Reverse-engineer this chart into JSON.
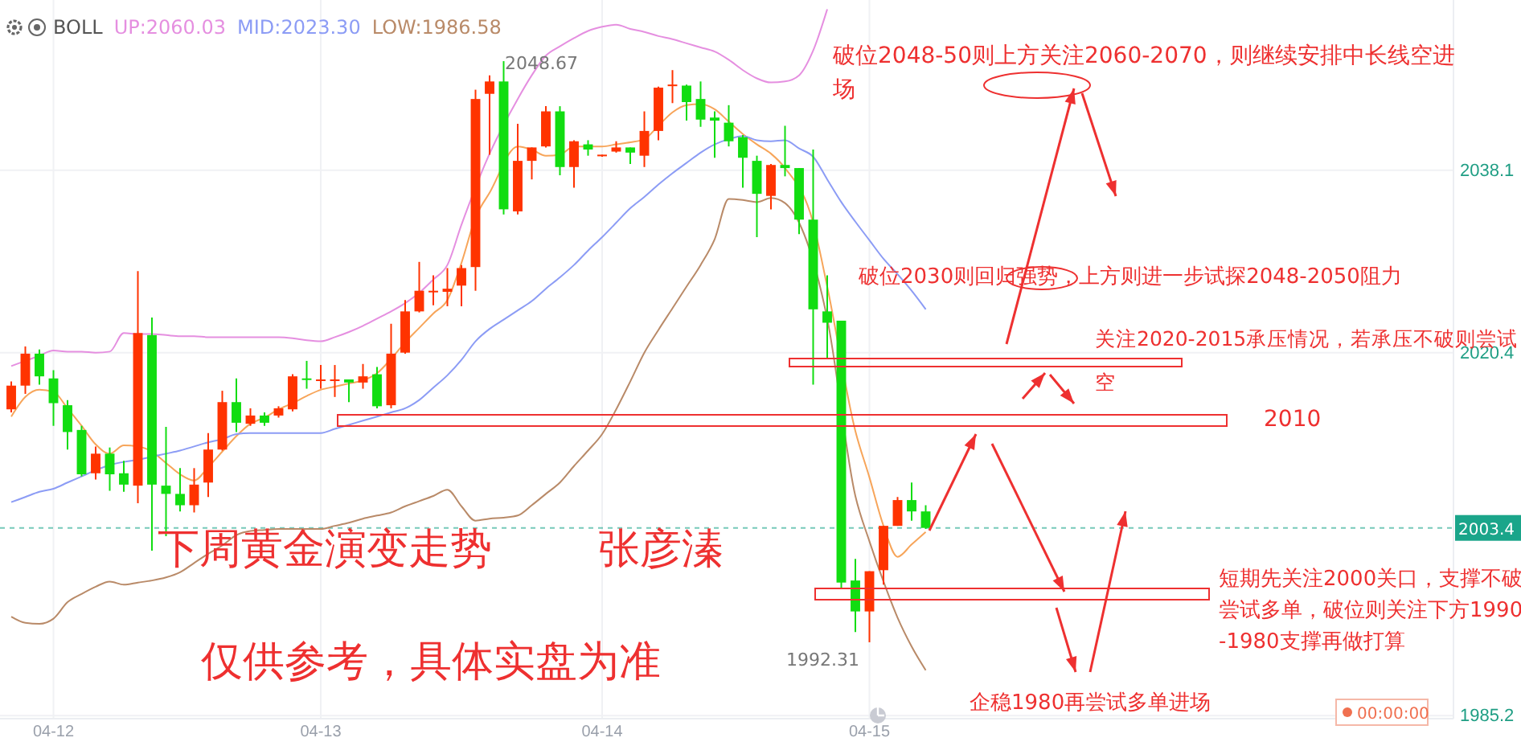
{
  "chart_data": {
    "type": "candlestick",
    "categories": [
      null,
      null,
      null,
      "04-12",
      null,
      null,
      null,
      null,
      null,
      null,
      null,
      null,
      null,
      null,
      null,
      null,
      null,
      null,
      null,
      null,
      null,
      null,
      "04-13",
      null,
      null,
      null,
      null,
      null,
      null,
      null,
      null,
      null,
      null,
      null,
      null,
      null,
      null,
      null,
      null,
      null,
      null,
      null,
      "04-14",
      null,
      null,
      null,
      null,
      null,
      null,
      null,
      null,
      null,
      null,
      null,
      null,
      null,
      null,
      null,
      null,
      null,
      null,
      "04-15",
      null,
      null,
      null,
      null
    ],
    "ohlc": [
      [
        2014.9,
        2017.6,
        2014.6,
        2017.2
      ],
      [
        2017.2,
        2021.0,
        2016.4,
        2020.3
      ],
      [
        2020.3,
        2020.7,
        2017.3,
        2018.1
      ],
      [
        2017.9,
        2018.7,
        2013.3,
        2015.5
      ],
      [
        2015.3,
        2015.8,
        2011.0,
        2012.7
      ],
      [
        2012.9,
        2013.3,
        2008.4,
        2008.6
      ],
      [
        2008.7,
        2011.3,
        2008.1,
        2010.6
      ],
      [
        2010.6,
        2011.2,
        2007.0,
        2008.6
      ],
      [
        2008.7,
        2009.9,
        2006.9,
        2007.6
      ],
      [
        2007.5,
        2028.3,
        2005.8,
        2022.3
      ],
      [
        2022.1,
        2023.8,
        2001.2,
        2007.6
      ],
      [
        2007.5,
        2013.2,
        2002.6,
        2006.7
      ],
      [
        2006.7,
        2009.2,
        2005.0,
        2005.6
      ],
      [
        2005.6,
        2009.2,
        2004.9,
        2007.6
      ],
      [
        2007.8,
        2012.6,
        2006.4,
        2011.0
      ],
      [
        2011.0,
        2016.7,
        2010.9,
        2015.6
      ],
      [
        2015.6,
        2017.9,
        2012.7,
        2013.6
      ],
      [
        2013.5,
        2015.0,
        2013.3,
        2014.3
      ],
      [
        2014.3,
        2014.6,
        2013.3,
        2013.6
      ],
      [
        2014.3,
        2015.2,
        2014.1,
        2015.0
      ],
      [
        2014.9,
        2018.3,
        2014.7,
        2018.1
      ],
      [
        2017.9,
        2019.6,
        2016.9,
        2017.8
      ],
      [
        2017.7,
        2019.2,
        2016.9,
        2017.8
      ],
      [
        2017.7,
        2019.2,
        2016.1,
        2017.8
      ],
      [
        2017.8,
        2017.8,
        2015.6,
        2017.5
      ],
      [
        2017.5,
        2019.3,
        2016.9,
        2018.1
      ],
      [
        2018.3,
        2019.0,
        2015.0,
        2015.2
      ],
      [
        2015.3,
        2023.2,
        2015.0,
        2020.3
      ],
      [
        2020.4,
        2025.5,
        2020.3,
        2024.4
      ],
      [
        2024.4,
        2029.2,
        2024.3,
        2026.4
      ],
      [
        2026.3,
        2027.9,
        2025.0,
        2026.4
      ],
      [
        2026.3,
        2028.6,
        2024.9,
        2026.6
      ],
      [
        2026.9,
        2028.9,
        2024.9,
        2028.6
      ],
      [
        2028.7,
        2045.9,
        2026.4,
        2045.0
      ],
      [
        2045.5,
        2047.3,
        2039.6,
        2046.7
      ],
      [
        2046.7,
        2048.67,
        2033.8,
        2034.3
      ],
      [
        2034.1,
        2042.6,
        2033.8,
        2039.0
      ],
      [
        2039.0,
        2040.3,
        2037.2,
        2040.3
      ],
      [
        2040.4,
        2044.3,
        2040.3,
        2043.8
      ],
      [
        2043.8,
        2044.3,
        2037.6,
        2038.4
      ],
      [
        2038.4,
        2041.0,
        2036.4,
        2040.9
      ],
      [
        2040.6,
        2041.0,
        2039.5,
        2040.1
      ],
      [
        2039.5,
        2039.6,
        2039.4,
        2039.6
      ],
      [
        2039.9,
        2040.9,
        2039.8,
        2040.3
      ],
      [
        2040.3,
        2040.3,
        2038.7,
        2039.8
      ],
      [
        2039.5,
        2043.8,
        2038.4,
        2041.9
      ],
      [
        2041.9,
        2046.2,
        2041.0,
        2046.1
      ],
      [
        2046.3,
        2047.8,
        2044.6,
        2046.4
      ],
      [
        2046.3,
        2046.4,
        2042.9,
        2044.7
      ],
      [
        2045.0,
        2046.7,
        2042.3,
        2043.0
      ],
      [
        2043.2,
        2043.8,
        2039.3,
        2042.9
      ],
      [
        2042.7,
        2044.4,
        2040.4,
        2040.9
      ],
      [
        2041.3,
        2041.5,
        2036.4,
        2039.3
      ],
      [
        2039.0,
        2039.5,
        2031.6,
        2035.8
      ],
      [
        2035.6,
        2038.7,
        2034.3,
        2038.6
      ],
      [
        2038.6,
        2042.4,
        2037.5,
        2038.3
      ],
      [
        2038.3,
        2038.3,
        2031.9,
        2033.3
      ],
      [
        2033.3,
        2040.1,
        2017.3,
        2024.6
      ],
      [
        2024.4,
        2027.9,
        2019.8,
        2023.3
      ],
      [
        2023.5,
        2023.5,
        1997.6,
        1998.1
      ],
      [
        1998.3,
        2000.4,
        1993.3,
        1995.3
      ],
      [
        1995.3,
        1999.2,
        1992.31,
        1999.2
      ],
      [
        1999.3,
        2003.6,
        1997.9,
        2003.6
      ],
      [
        2003.6,
        2006.4,
        2003.6,
        2006.1
      ],
      [
        2006.1,
        2007.8,
        2004.1,
        2005.0
      ],
      [
        2005.0,
        2005.6,
        2003.3,
        2003.4
      ]
    ],
    "colors": [
      "#ff3300",
      "#ff3300",
      "#11dd11",
      "#11dd11",
      "#11dd11",
      "#11dd11",
      "#ff3300",
      "#11dd11",
      "#11dd11",
      "#ff3300",
      "#11dd11",
      "#11dd11",
      "#11dd11",
      "#ff3300",
      "#ff3300",
      "#ff3300",
      "#11dd11",
      "#ff3300",
      "#11dd11",
      "#ff3300",
      "#ff3300",
      "#11dd11",
      "#ff3300",
      "#ff3300",
      "#11dd11",
      "#ff3300",
      "#11dd11",
      "#ff3300",
      "#ff3300",
      "#ff3300",
      "#ff3300",
      "#ff3300",
      "#ff3300",
      "#ff3300",
      "#ff3300",
      "#11dd11",
      "#ff3300",
      "#ff3300",
      "#ff3300",
      "#11dd11",
      "#ff3300",
      "#11dd11",
      "#ff3300",
      "#ff3300",
      "#11dd11",
      "#ff3300",
      "#ff3300",
      "#ff3300",
      "#11dd11",
      "#11dd11",
      "#11dd11",
      "#11dd11",
      "#11dd11",
      "#11dd11",
      "#ff3300",
      "#11dd11",
      "#11dd11",
      "#11dd11",
      "#11dd11",
      "#11dd11",
      "#11dd11",
      "#ff3300",
      "#ff3300",
      "#ff3300",
      "#11dd11",
      "#11dd11"
    ],
    "series": [
      {
        "type": "line",
        "color": "#f7a55a",
        "values": [
          2014.2,
          2016.1,
          2016.8,
          2016.6,
          2015.0,
          2013.3,
          2011.5,
          2010.6,
          2011.4,
          2011.3,
          2010.8,
          2009.7,
          2008.6,
          2008.0,
          2009.3,
          2010.8,
          2012.3,
          2013.5,
          2014.1,
          2014.9,
          2015.5,
          2016.2,
          2016.8,
          2017.1,
          2017.4,
          2017.7,
          2018.4,
          2019.8,
          2021.4,
          2022.8,
          2024.2,
          2025.5,
          2029.1,
          2033.5,
          2035.9,
          null,
          2040.4,
          2040.1,
          2039.5,
          2039.6,
          2040.4,
          2040.4,
          2040.4,
          2040.6,
          2040.8,
          2041.1,
          2042.4,
          2043.7,
          2044.4,
          2044.5,
          2044.0,
          2042.8,
          2041.6,
          2040.6,
          2039.7,
          2038.3,
          null,
          2033.0,
          2026.8,
          null,
          2012.8,
          2008.3,
          2003.6,
          2000.6,
          2001.8,
          2003.0
        ]
      },
      {
        "type": "line",
        "name": "UP:2060.03",
        "color": "#e58fe0",
        "values": [
          2019.1,
          2019.6,
          2020.1,
          2020.6,
          2020.5,
          2020.5,
          2020.4,
          2020.5,
          2022.3,
          2022.2,
          2022.2,
          2022.1,
          2022.0,
          2022.0,
          2021.9,
          2021.9,
          2021.9,
          2021.9,
          2021.9,
          2021.9,
          2021.8,
          2021.6,
          2021.5,
          2021.9,
          2022.4,
          2023.0,
          2023.7,
          2024.4,
          2025.2,
          2026.2,
          2027.5,
          2028.9,
          2032.8,
          null,
          2039.7,
          null,
          2045.0,
          2047.3,
          2049.2,
          2050.1,
          2050.9,
          2051.6,
          2052.0,
          2052.2,
          2051.8,
          2051.5,
          2051.1,
          2050.8,
          2050.4,
          2050.0,
          2049.6,
          2048.8,
          2047.8,
          2047.0,
          2046.6,
          2046.7,
          2047.3,
          2049.7,
          2053.7,
          null,
          null,
          null,
          null,
          null,
          null,
          null
        ]
      },
      {
        "type": "line",
        "name": "MID:2023.30",
        "color": "#8c9cf5",
        "values": [
          2005.9,
          2006.4,
          2006.9,
          2007.2,
          2007.8,
          2008.4,
          2009.0,
          2009.5,
          2009.8,
          2010.0,
          2010.3,
          2010.6,
          2010.9,
          2011.3,
          2011.7,
          2012.0,
          2012.5,
          2012.6,
          2012.6,
          2012.6,
          2012.6,
          2012.6,
          2012.6,
          2013.0,
          2013.4,
          2013.8,
          2014.2,
          2014.6,
          2015.0,
          2015.8,
          2017.0,
          2018.2,
          2019.7,
          2021.5,
          2022.7,
          2023.6,
          2024.5,
          2025.4,
          2026.6,
          2027.7,
          2028.9,
          2030.3,
          2031.6,
          2033.0,
          2034.4,
          2035.5,
          2036.7,
          2037.8,
          2038.8,
          2039.8,
          2040.6,
          2041.1,
          2041.4,
          2041.0,
          2040.9,
          2041.0,
          2040.2,
          2039.4,
          2037.2,
          2035.0,
          2033.1,
          2031.3,
          2029.5,
          2028.0,
          2026.4,
          2024.6
        ]
      },
      {
        "type": "line",
        "name": "LOW:1986.58",
        "color": "#b98a68",
        "values": [
          1994.8,
          1994.2,
          1994.1,
          1994.6,
          1996.2,
          1997.0,
          1997.7,
          1998.2,
          1997.9,
          1998.1,
          1998.3,
          1998.6,
          1999.1,
          2000.0,
          2000.9,
          2001.7,
          2002.7,
          2003.1,
          2003.2,
          2003.3,
          2003.3,
          2003.3,
          2003.3,
          2003.6,
          2003.9,
          2004.3,
          2004.6,
          2004.9,
          2005.5,
          2006.0,
          2006.5,
          2007.1,
          2005.5,
          2004.1,
          2004.3,
          2004.4,
          2004.6,
          2005.6,
          2006.7,
          2007.8,
          2009.4,
          2010.9,
          2012.5,
          2014.9,
          2017.6,
          2020.4,
          2022.6,
          2024.7,
          2026.8,
          2028.9,
          2031.4,
          2035.3,
          2035.2,
          2035.0,
          2035.4,
          2034.9,
          2033.0,
          null,
          2023.7,
          null,
          2006.5,
          2002.1,
          1998.2,
          1994.7,
          1991.9,
          1989.6
        ]
      }
    ],
    "legend": "top",
    "legend_title": "BOLL",
    "ylim": [
      1984.9,
      2054.6
    ],
    "yticks": [
      2038.1,
      2020.4,
      1985.2
    ],
    "grid": true,
    "ref_lines": [
      {
        "axis": "y",
        "value": 2003.4,
        "label": "2003.4",
        "color": "#1aa58a",
        "line_style": "dashed"
      }
    ],
    "annotations": [
      "破位2048-50则上方关注2060-2070，则继续安排中长线空进场",
      "破位2030则回归强势，上方则进一步试探2048-2050阻力",
      "关注2020-2015承压情况，若承压不破则尝试空",
      "2010",
      "短期先关注2000关口，支撑不破尝试多单，破位则关注下方1990-1980支撑再做打算",
      "企稳1980再尝试多单进场",
      "下周黄金演变走势",
      "张彦溱",
      "仅供参考，具体实盘为准",
      "2048.67",
      "1992.31",
      "00:00:00"
    ]
  }
}
